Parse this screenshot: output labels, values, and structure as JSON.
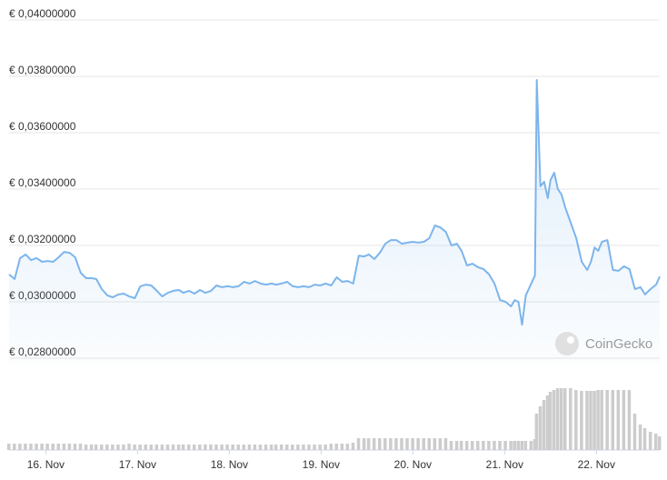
{
  "chart_data": {
    "type": "line",
    "watermark": "CoinGecko",
    "color": "#7cb5ec",
    "grid": true,
    "xlim": [
      15.6,
      22.69
    ],
    "xticks": [
      {
        "value": 16,
        "label": "16. Nov"
      },
      {
        "value": 17,
        "label": "17. Nov"
      },
      {
        "value": 18,
        "label": "18. Nov"
      },
      {
        "value": 19,
        "label": "19. Nov"
      },
      {
        "value": 20,
        "label": "20. Nov"
      },
      {
        "value": 21,
        "label": "21. Nov"
      },
      {
        "value": 22,
        "label": "22. Nov"
      }
    ],
    "ylim": [
      0.028,
      0.04
    ],
    "yticks": [
      {
        "value": 0.028,
        "label": "€ 0,02800000"
      },
      {
        "value": 0.03,
        "label": "€ 0,03000000"
      },
      {
        "value": 0.032,
        "label": "€ 0,03200000"
      },
      {
        "value": 0.034,
        "label": "€ 0,03400000"
      },
      {
        "value": 0.036,
        "label": "€ 0,03600000"
      },
      {
        "value": 0.038,
        "label": "€ 0,03800000"
      },
      {
        "value": 0.04,
        "label": "€ 0,04000000"
      }
    ],
    "x": [
      15.6,
      15.66,
      15.72,
      15.78,
      15.84,
      15.9,
      15.96,
      16.02,
      16.08,
      16.14,
      16.2,
      16.26,
      16.32,
      16.38,
      16.44,
      16.5,
      16.55,
      16.61,
      16.67,
      16.73,
      16.79,
      16.85,
      16.91,
      16.97,
      17.03,
      17.09,
      17.15,
      17.21,
      17.27,
      17.33,
      17.39,
      17.45,
      17.5,
      17.56,
      17.62,
      17.68,
      17.74,
      17.8,
      17.86,
      17.92,
      17.98,
      18.04,
      18.1,
      18.16,
      18.22,
      18.28,
      18.34,
      18.4,
      18.46,
      18.51,
      18.57,
      18.63,
      18.69,
      18.75,
      18.81,
      18.87,
      18.93,
      18.99,
      19.05,
      19.11,
      19.17,
      19.23,
      19.29,
      19.35,
      19.41,
      19.47,
      19.52,
      19.58,
      19.64,
      19.7,
      19.76,
      19.82,
      19.88,
      19.94,
      20.0,
      20.06,
      20.12,
      20.18,
      20.24,
      20.3,
      20.36,
      20.42,
      20.48,
      20.53,
      20.59,
      20.65,
      20.71,
      20.77,
      20.83,
      20.89,
      20.95,
      21.01,
      21.07,
      21.11,
      21.15,
      21.19,
      21.23,
      21.29,
      21.33,
      21.35,
      21.39,
      21.43,
      21.47,
      21.5,
      21.54,
      21.58,
      21.62,
      21.66,
      21.72,
      21.78,
      21.84,
      21.9,
      21.94,
      21.98,
      22.02,
      22.06,
      22.12,
      22.18,
      22.24,
      22.3,
      22.36,
      22.42,
      22.48,
      22.53,
      22.59,
      22.65,
      22.69
    ],
    "values": [
      0.03097,
      0.03081,
      0.03155,
      0.03168,
      0.03148,
      0.03155,
      0.03142,
      0.03145,
      0.03142,
      0.03158,
      0.03177,
      0.03174,
      0.03158,
      0.03103,
      0.03084,
      0.03084,
      0.03081,
      0.03045,
      0.03023,
      0.03016,
      0.03026,
      0.03029,
      0.03019,
      0.03013,
      0.03055,
      0.03061,
      0.03058,
      0.03039,
      0.03019,
      0.03032,
      0.03039,
      0.03042,
      0.03032,
      0.03039,
      0.03029,
      0.03042,
      0.03032,
      0.03039,
      0.03058,
      0.03052,
      0.03055,
      0.03052,
      0.03055,
      0.03071,
      0.03065,
      0.03074,
      0.03065,
      0.03061,
      0.03065,
      0.03061,
      0.03065,
      0.03071,
      0.03055,
      0.03052,
      0.03055,
      0.03052,
      0.03061,
      0.03058,
      0.03065,
      0.03058,
      0.03087,
      0.03071,
      0.03074,
      0.03065,
      0.03164,
      0.03161,
      0.03168,
      0.03152,
      0.03174,
      0.03206,
      0.03219,
      0.03219,
      0.03206,
      0.0321,
      0.03213,
      0.0321,
      0.03213,
      0.03226,
      0.03271,
      0.03264,
      0.03248,
      0.032,
      0.03206,
      0.03181,
      0.03129,
      0.03135,
      0.03123,
      0.03116,
      0.03097,
      0.03065,
      0.03006,
      0.03,
      0.02984,
      0.03006,
      0.03,
      0.02919,
      0.03023,
      0.03065,
      0.03094,
      0.03787,
      0.0341,
      0.03426,
      0.03368,
      0.03432,
      0.03458,
      0.034,
      0.03381,
      0.03335,
      0.03281,
      0.03226,
      0.03142,
      0.03113,
      0.03142,
      0.03193,
      0.03181,
      0.03213,
      0.03219,
      0.03113,
      0.0311,
      0.03126,
      0.03116,
      0.03045,
      0.03052,
      0.03026,
      0.03045,
      0.03061,
      0.0309
    ],
    "volume": {
      "color": "#cccccc",
      "ylim": [
        0,
        100
      ],
      "values": [
        7,
        7,
        7,
        7,
        7,
        7,
        7,
        7,
        7,
        7,
        7,
        7,
        7,
        7,
        6,
        6,
        6,
        6,
        6,
        6,
        6,
        6,
        7,
        6,
        6,
        6,
        6,
        6,
        6,
        6,
        6,
        6,
        6,
        6,
        6,
        6,
        6,
        6,
        6,
        6,
        6,
        6,
        6,
        6,
        6,
        6,
        6,
        6,
        6,
        6,
        6,
        6,
        6,
        6,
        6,
        6,
        6,
        6,
        6,
        7,
        7,
        7,
        7,
        8,
        13,
        13,
        13,
        13,
        13,
        13,
        13,
        13,
        13,
        13,
        13,
        13,
        13,
        13,
        13,
        13,
        13,
        10,
        10,
        10,
        10,
        10,
        10,
        10,
        10,
        10,
        10,
        10,
        10,
        10,
        10,
        10,
        10,
        10,
        12,
        40,
        48,
        55,
        60,
        64,
        66,
        68,
        68,
        68,
        68,
        66,
        65,
        65,
        65,
        65,
        66,
        66,
        66,
        66,
        66,
        66,
        66,
        40,
        28,
        24,
        20,
        18,
        15
      ]
    }
  }
}
